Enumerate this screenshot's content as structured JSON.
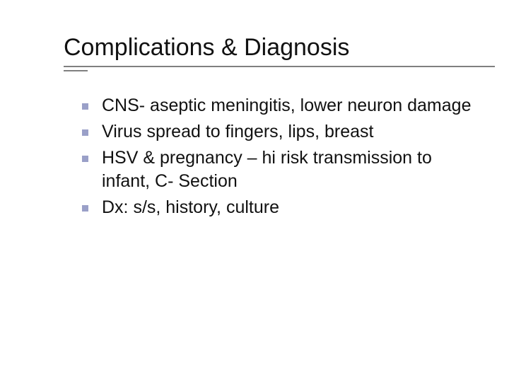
{
  "slide": {
    "title": "Complications & Diagnosis",
    "title_color": "#111111",
    "title_fontsize": 34,
    "rule_color": "#808080",
    "bullet_marker_color": "#9aa0c8",
    "bullet_fontsize": 25,
    "text_color": "#111111",
    "background_color": "#ffffff",
    "bullets": [
      "CNS- aseptic meningitis, lower neuron damage",
      "Virus spread to fingers, lips, breast",
      "HSV & pregnancy – hi risk transmission to infant, C- Section",
      "Dx: s/s, history, culture"
    ]
  }
}
